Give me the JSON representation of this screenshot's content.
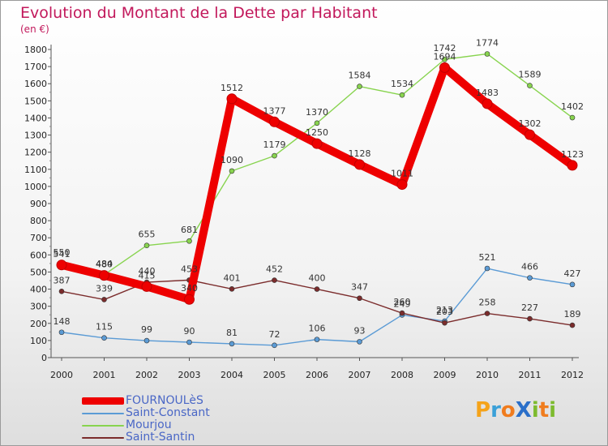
{
  "title": "Evolution du Montant de la Dette par Habitant",
  "subtitle": "(en €)",
  "logo": {
    "text": "Proxiti",
    "letters": [
      {
        "ch": "P",
        "color": "#f5a31a"
      },
      {
        "ch": "r",
        "color": "#3aa0d8"
      },
      {
        "ch": "o",
        "color": "#f07c1e"
      },
      {
        "ch": "X",
        "color": "#2a6fc9"
      },
      {
        "ch": "i",
        "color": "#7dbb2e"
      },
      {
        "ch": "t",
        "color": "#f07c1e"
      },
      {
        "ch": "i",
        "color": "#7dbb2e"
      }
    ]
  },
  "chart_data": {
    "type": "line",
    "x": [
      "2000",
      "2001",
      "2002",
      "2003",
      "2004",
      "2005",
      "2006",
      "2007",
      "2008",
      "2009",
      "2010",
      "2011",
      "2012"
    ],
    "ylim": [
      0,
      1800
    ],
    "yticks": [
      0,
      100,
      200,
      300,
      400,
      500,
      600,
      700,
      800,
      900,
      1000,
      1100,
      1200,
      1300,
      1400,
      1500,
      1600,
      1700,
      1800
    ],
    "grid": false,
    "legend_position": "bottom-left",
    "series": [
      {
        "name": "Saint-Constant",
        "color": "#5b9bd5",
        "values": [
          148,
          115,
          99,
          90,
          81,
          72,
          106,
          93,
          249,
          213,
          521,
          466,
          427
        ],
        "labels": [
          "148",
          "115",
          "99",
          "90",
          "81",
          "72",
          "106",
          "93",
          "249",
          "213",
          "521",
          "466",
          "427"
        ]
      },
      {
        "name": "Mourjou",
        "color": "#88d44f",
        "values": [
          550,
          484,
          655,
          681,
          1090,
          1179,
          1370,
          1584,
          1534,
          1742,
          1774,
          1589,
          1402
        ],
        "labels": [
          "550",
          "484",
          "655",
          "681",
          "1090",
          "1179",
          "1370",
          "1584",
          "1534",
          "1742",
          "1774",
          "1589",
          "1402"
        ]
      },
      {
        "name": "Saint-Santin",
        "color": "#7b2c2c",
        "values": [
          387,
          339,
          440,
          453,
          401,
          452,
          400,
          347,
          260,
          203,
          258,
          227,
          189
        ],
        "labels": [
          "387",
          "339",
          "440",
          "453",
          "401",
          "452",
          "400",
          "347",
          "260",
          "203",
          "258",
          "227",
          "189"
        ]
      },
      {
        "name": "FOURNOULèS",
        "color": "#ee0000",
        "values": [
          541,
          480,
          415,
          340,
          1512,
          1377,
          1250,
          1128,
          1011,
          1694,
          1483,
          1302,
          1123
        ],
        "labels": [
          "541",
          "480",
          "415",
          "340",
          "1512",
          "1377",
          "1250",
          "1128",
          "1011",
          "1694",
          "1483",
          "1302",
          "1123"
        ]
      }
    ]
  }
}
